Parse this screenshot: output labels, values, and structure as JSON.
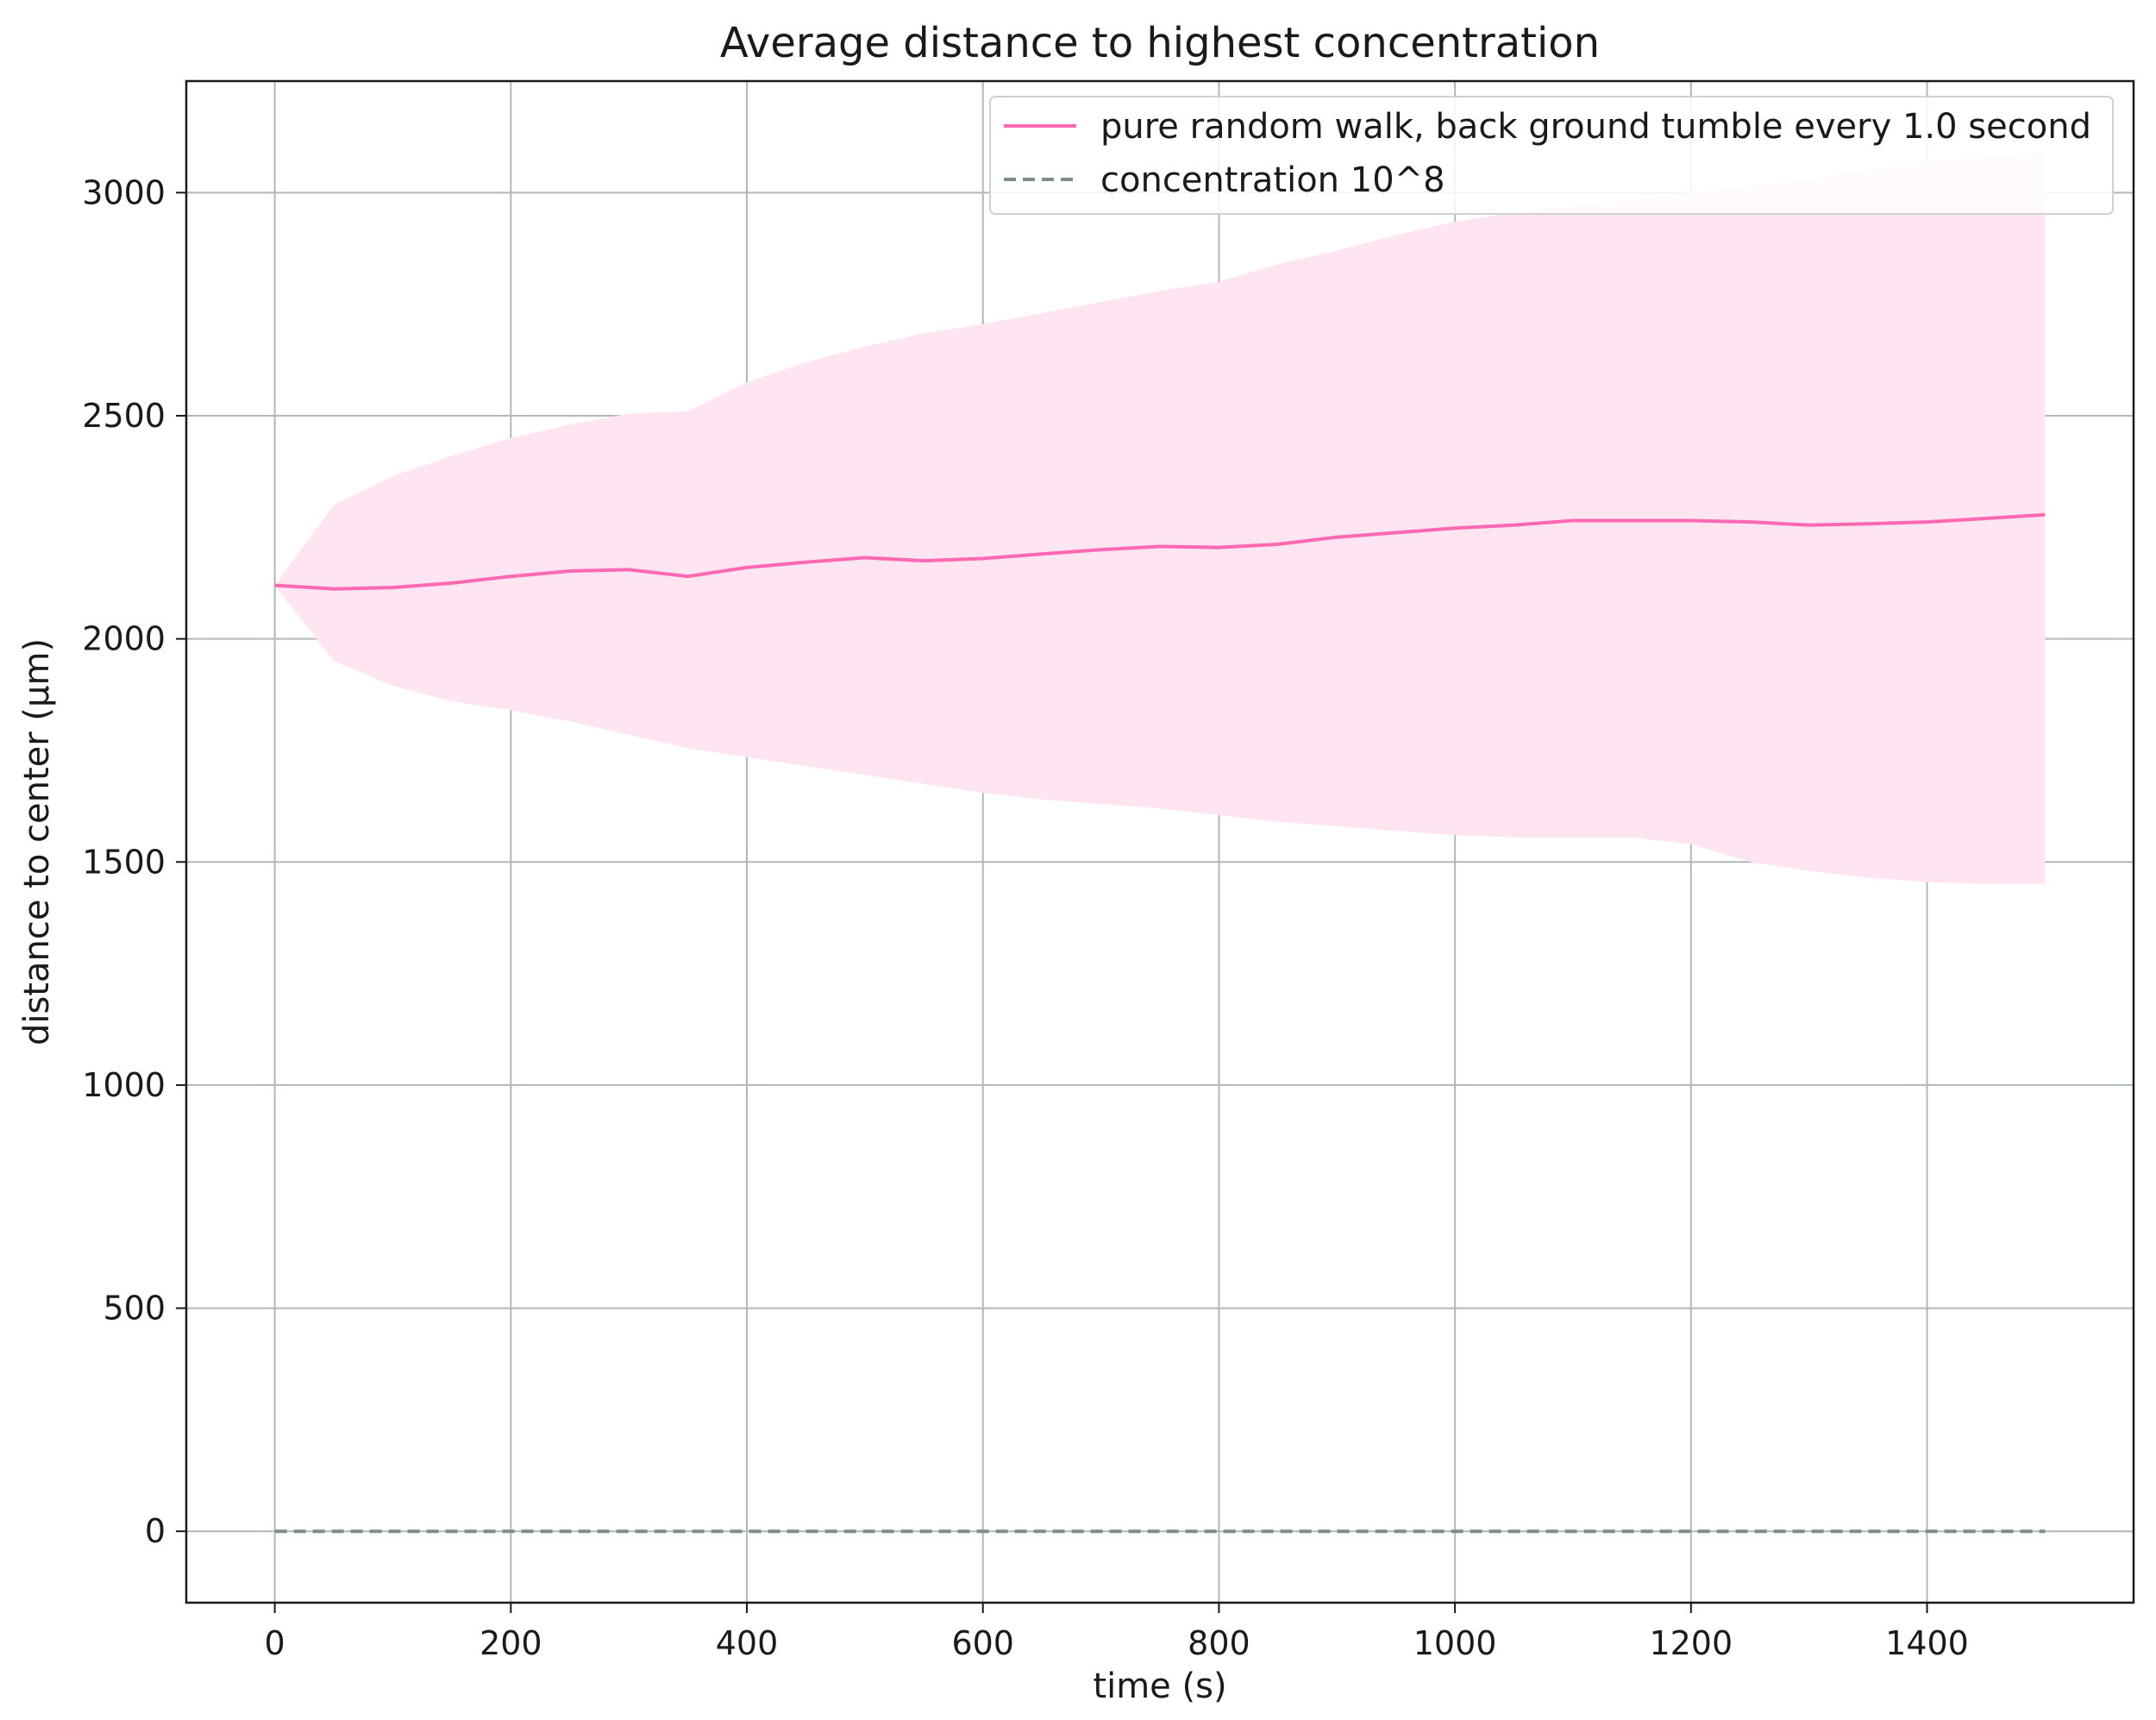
{
  "chart_data": {
    "type": "line",
    "title": "Average distance to highest concentration",
    "xlabel": "time (s)",
    "ylabel": "distance to center (µm)",
    "xlim": [
      -75,
      1575
    ],
    "ylim": [
      -160,
      3250
    ],
    "xticks": [
      0,
      200,
      400,
      600,
      800,
      1000,
      1200,
      1400
    ],
    "yticks": [
      0,
      500,
      1000,
      1500,
      2000,
      2500,
      3000
    ],
    "grid": true,
    "legend_position": "top-right",
    "series": [
      {
        "name": "pure random walk, back ground tumble every 1.0 second",
        "color": "#ff69b4",
        "style": "solid",
        "x": [
          0,
          50,
          100,
          150,
          200,
          250,
          300,
          350,
          400,
          450,
          500,
          550,
          600,
          650,
          700,
          750,
          800,
          850,
          900,
          950,
          1000,
          1050,
          1100,
          1150,
          1200,
          1250,
          1300,
          1350,
          1400,
          1450,
          1500
        ],
        "y": [
          2120,
          2112,
          2115,
          2125,
          2140,
          2152,
          2155,
          2140,
          2160,
          2172,
          2182,
          2175,
          2180,
          2190,
          2200,
          2207,
          2205,
          2212,
          2228,
          2238,
          2248,
          2255,
          2265,
          2265,
          2265,
          2262,
          2255,
          2258,
          2262,
          2270,
          2278
        ],
        "band": {
          "color": "#ffe4f1",
          "upper": [
            2120,
            2300,
            2365,
            2410,
            2450,
            2480,
            2505,
            2510,
            2575,
            2620,
            2655,
            2685,
            2705,
            2730,
            2755,
            2780,
            2800,
            2840,
            2870,
            2905,
            2935,
            2955,
            2970,
            2985,
            3000,
            3015,
            3030,
            3050,
            3070,
            3080,
            3090
          ],
          "lower": [
            2120,
            1950,
            1895,
            1860,
            1840,
            1815,
            1785,
            1755,
            1735,
            1715,
            1695,
            1675,
            1655,
            1640,
            1630,
            1620,
            1605,
            1590,
            1580,
            1570,
            1560,
            1555,
            1555,
            1555,
            1540,
            1500,
            1480,
            1465,
            1455,
            1450,
            1450
          ]
        }
      },
      {
        "name": "concentration 10^8",
        "color": "#7f8c8d",
        "style": "dashed",
        "x": [
          0,
          1500
        ],
        "y": [
          0,
          0
        ]
      }
    ]
  }
}
